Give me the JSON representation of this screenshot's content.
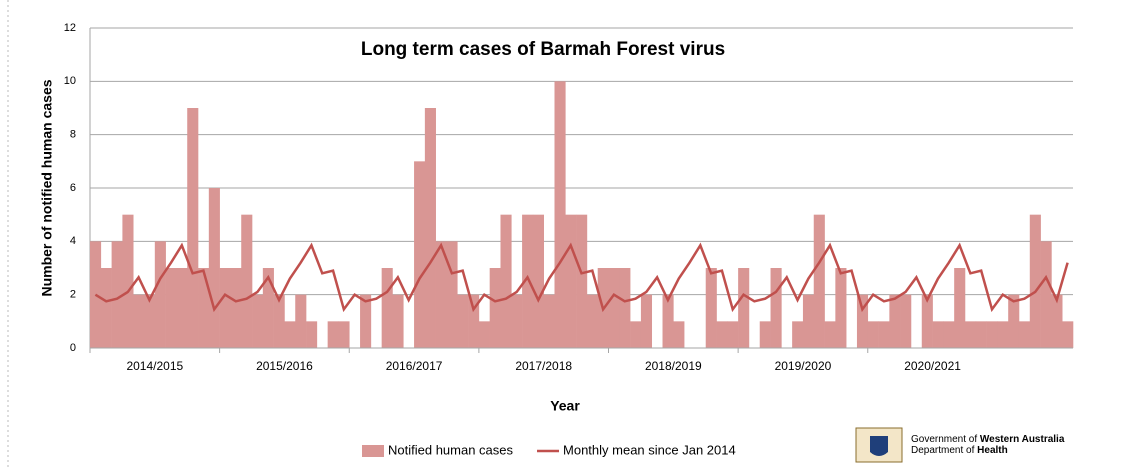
{
  "chart_data": {
    "type": "bar_line",
    "title": "Long term cases of Barmah Forest virus",
    "x_label": "Year",
    "y_label": "Number of notified human cases",
    "categories": [
      null,
      null,
      null,
      null,
      null,
      null,
      null,
      null,
      null,
      null,
      null,
      null,
      null,
      null,
      null,
      null,
      null,
      null,
      null,
      null,
      null,
      null,
      null,
      null,
      null,
      null,
      null,
      null,
      null,
      null,
      null,
      null,
      null,
      null,
      null,
      null,
      null,
      null,
      null,
      null,
      null,
      null,
      null,
      null,
      null,
      null,
      null,
      null,
      null,
      null,
      null,
      null,
      null,
      null,
      null,
      null,
      null,
      null,
      null,
      null,
      null,
      null,
      null,
      null,
      null,
      null,
      null,
      null,
      null,
      null,
      null,
      null,
      null,
      null,
      null,
      null,
      null,
      null,
      null,
      null,
      null,
      null,
      null,
      null,
      null,
      null,
      null,
      null,
      null,
      null,
      null
    ],
    "group_labels": [
      "2014/2015",
      "2015/2016",
      "2016/2017",
      "2017/2018",
      "2018/2019",
      "2019/2020",
      "2020/2021"
    ],
    "series": [
      {
        "name": "Notified human cases",
        "kind": "bar",
        "color": "#d99694",
        "values": [
          4,
          3,
          4,
          5,
          2,
          2,
          4,
          3,
          3,
          9,
          3,
          6,
          3,
          3,
          5,
          2,
          3,
          2,
          1,
          2,
          1,
          0,
          1,
          1,
          0,
          2,
          0,
          3,
          2,
          0,
          7,
          9,
          4,
          4,
          2,
          2,
          1,
          3,
          5,
          2,
          5,
          5,
          2,
          10,
          5,
          5,
          2,
          3,
          3,
          3,
          1,
          2,
          0,
          2,
          1,
          0,
          0,
          3,
          1,
          1,
          3,
          0,
          1,
          3,
          0,
          1,
          2,
          5,
          1,
          3,
          0,
          2,
          1,
          1,
          2,
          2,
          0,
          2,
          1,
          1,
          3,
          1,
          1,
          1,
          1,
          2,
          1,
          5,
          4,
          2,
          1
        ]
      },
      {
        "name": "Monthly mean since Jan 2014",
        "kind": "line",
        "color": "#c0504d",
        "values": [
          2.0,
          1.75,
          1.85,
          2.1,
          2.65,
          1.8,
          2.6,
          3.2,
          3.85,
          2.8,
          2.9,
          1.45,
          2.0,
          1.75,
          1.85,
          2.1,
          2.65,
          1.8,
          2.6,
          3.2,
          3.85,
          2.8,
          2.9,
          1.45,
          2.0,
          1.75,
          1.85,
          2.1,
          2.65,
          1.8,
          2.6,
          3.2,
          3.85,
          2.8,
          2.9,
          1.45,
          2.0,
          1.75,
          1.85,
          2.1,
          2.65,
          1.8,
          2.6,
          3.2,
          3.85,
          2.8,
          2.9,
          1.45,
          2.0,
          1.75,
          1.85,
          2.1,
          2.65,
          1.8,
          2.6,
          3.2,
          3.85,
          2.8,
          2.9,
          1.45,
          2.0,
          1.75,
          1.85,
          2.1,
          2.65,
          1.8,
          2.6,
          3.2,
          3.85,
          2.8,
          2.9,
          1.45,
          2.0,
          1.75,
          1.85,
          2.1,
          2.65,
          1.8,
          2.6,
          3.2,
          3.85,
          2.8,
          2.9,
          1.45,
          2.0,
          1.75,
          1.85,
          2.1,
          2.65,
          1.8,
          3.2
        ]
      }
    ],
    "ylim": [
      0,
      12
    ],
    "yticks": [
      0,
      2,
      4,
      6,
      8,
      10,
      12
    ],
    "grid": true,
    "legend": "bottom",
    "footer": {
      "line1_prefix": "Government of ",
      "line1_bold": "Western Australia",
      "line2_prefix": "Department of ",
      "line2_bold": "Health"
    }
  }
}
